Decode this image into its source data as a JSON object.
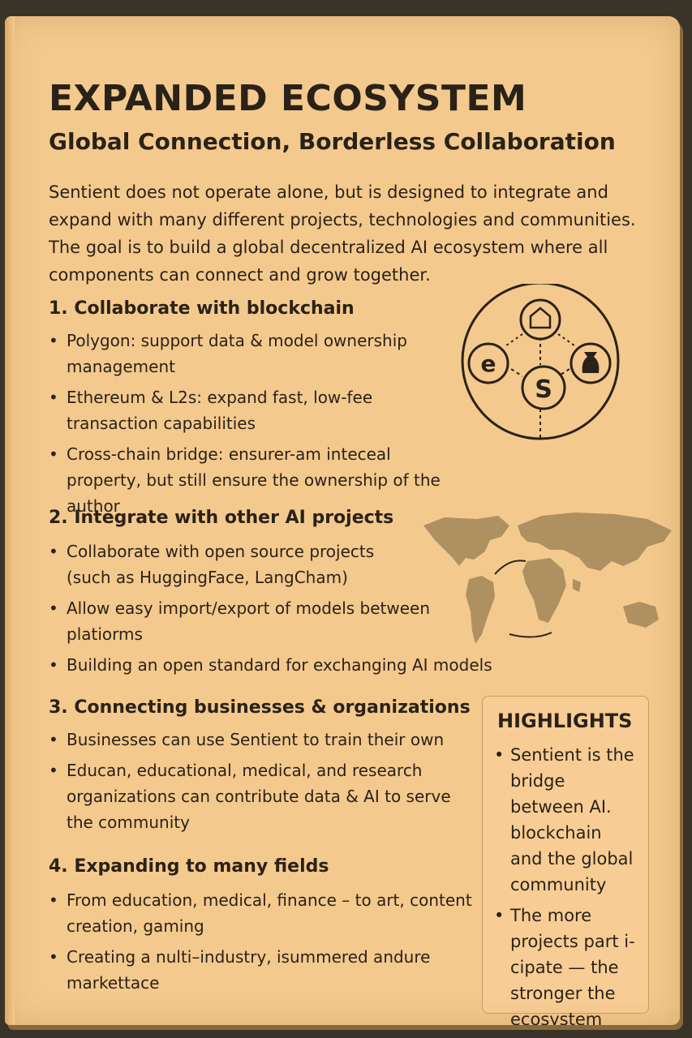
{
  "header": {
    "title": "EXPANDED ECOSYSTEM",
    "subtitle": "Global Connection, Borderless Collaboration"
  },
  "intro": "Sentient does not operate alone, but is designed to integrate and expand with many different projects, technologies and communities. The goal is to build a global decentralized AI ecosystem where all components can connect and grow together.",
  "sections": [
    {
      "title": "1. Collaborate with blockchain",
      "bullets": [
        "Polygon: support data & model ownership management",
        "Ethereum & L2s: expand fast, low-fee transaction capabilities",
        "Cross-chain bridge: ensurer-am inteceal property, but still ensure the ownership of the author"
      ]
    },
    {
      "title": "2. Integrate with other AI projects",
      "bullets": [
        "Collaborate with open source projects (such as HuggingFace, LangCham)",
        "Allow easy import/export of models between platiorms",
        "Building an open standard for exchanging AI models"
      ]
    },
    {
      "title": "3. Connecting businesses & organizations",
      "bullets": [
        "Businesses can use Sentient to train their own",
        "Educan, educational, medical, and research organizations can contribute data & AI to serve the community"
      ]
    },
    {
      "title": "4. Expanding to many fields",
      "bullets": [
        "From education, medical, finance – to art, content creation, gaming",
        "Creating a nulti–industry, isummered andure markettace"
      ]
    }
  ],
  "highlights": {
    "title": "HIGHLIGHTS",
    "items": [
      "Sentient is the bridge between AI. blockchain and the global community",
      "The more projects part i-cipate — the stronger the ecosystem"
    ]
  },
  "icons": {
    "network_diagram": "network-nodes-icon",
    "node_top": "home-icon",
    "node_left": "e-logo-icon",
    "node_center": "s-logo-icon",
    "node_right": "money-bag-icon",
    "map": "world-map-icon"
  },
  "colors": {
    "page": "#f4c98e",
    "ink": "#2a2218",
    "map": "#a88a5c"
  }
}
